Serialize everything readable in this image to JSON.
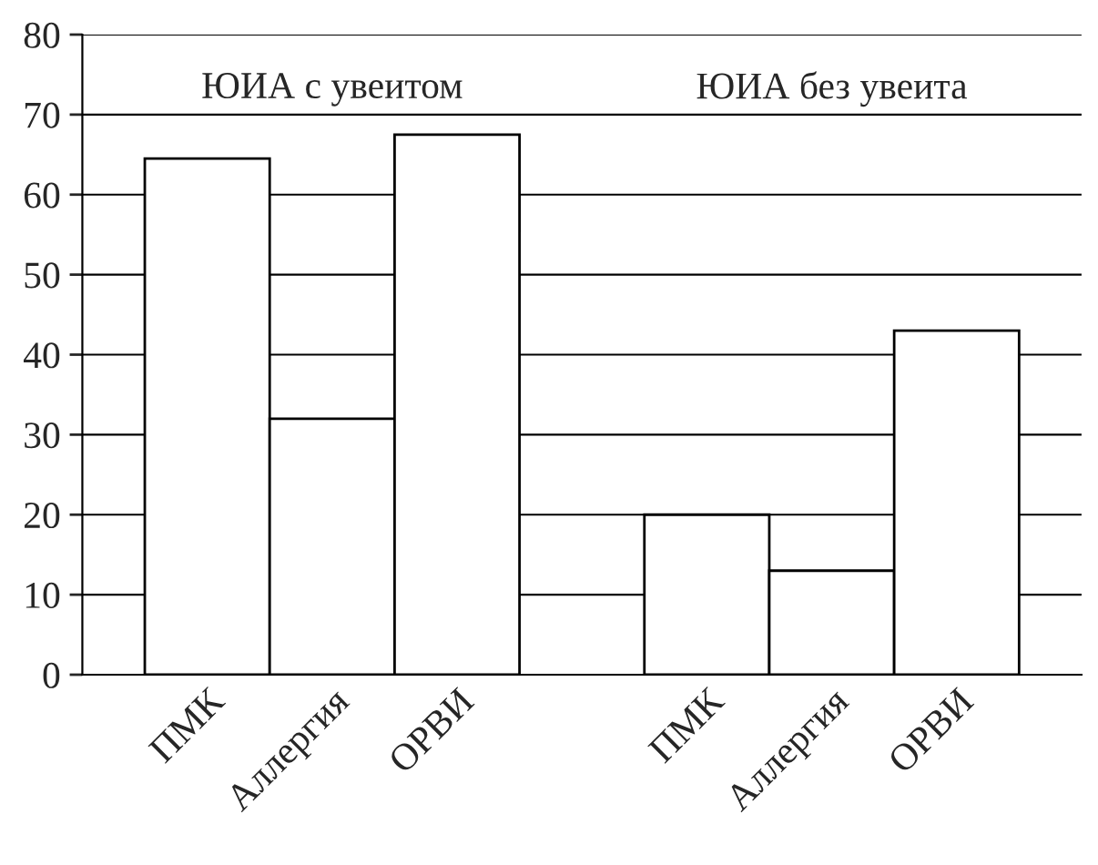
{
  "chart_data": {
    "type": "bar",
    "categories": [
      "ПМК",
      "Аллергия",
      "ОРВИ",
      null,
      "ПМК",
      "Аллергия",
      "ОРВИ"
    ],
    "values": [
      64.5,
      32,
      67.5,
      null,
      20,
      13,
      43
    ],
    "color": "#ffffff",
    "ylim": [
      0,
      80
    ],
    "yticks": [
      0,
      10,
      20,
      30,
      40,
      50,
      60,
      70,
      80
    ],
    "grid": "y",
    "annotations": [
      "ЮИА с увеитом",
      "ЮИА без увеита"
    ]
  }
}
